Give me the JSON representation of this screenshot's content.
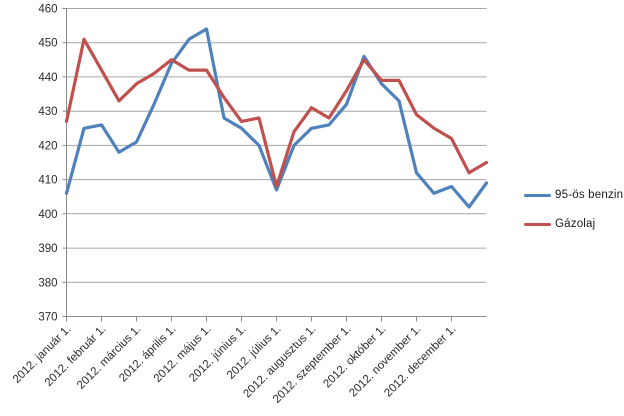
{
  "chart_data": {
    "type": "line",
    "title": "",
    "xlabel": "",
    "ylabel": "",
    "ylim": [
      370,
      460
    ],
    "y_ticks": [
      370,
      380,
      390,
      400,
      410,
      420,
      430,
      440,
      450,
      460
    ],
    "grid": true,
    "legend_position": "right",
    "x_tick_labels": [
      "2012. január 1.",
      "2012. február 1.",
      "2012. március 1.",
      "2012. április 1.",
      "2012. május 1.",
      "2012. június 1.",
      "2012. július 1.",
      "2012. augusztus 1.",
      "2012. szeptember 1.",
      "2012. október 1.",
      "2012. november 1.",
      "2012. december 1."
    ],
    "x": [
      "2012. január 1.",
      "2012. január 15.",
      "2012. február 1.",
      "2012. február 15.",
      "2012. március 1.",
      "2012. március 15.",
      "2012. április 1.",
      "2012. április 15.",
      "2012. május 1.",
      "2012. május 15.",
      "2012. június 1.",
      "2012. június 15.",
      "2012. július 1.",
      "2012. július 15.",
      "2012. augusztus 1.",
      "2012. augusztus 15.",
      "2012. szeptember 1.",
      "2012. szeptember 15.",
      "2012. október 1.",
      "2012. október 15.",
      "2012. november 1.",
      "2012. november 15.",
      "2012. december 1.",
      "2012. december 15.",
      "2012. december 31."
    ],
    "series": [
      {
        "name": "95-ös benzin",
        "color": "#4F81BD",
        "values": [
          406,
          425,
          426,
          418,
          421,
          432,
          444,
          451,
          454,
          428,
          425,
          420,
          407,
          420,
          425,
          426,
          432,
          446,
          438,
          433,
          412,
          406,
          408,
          402,
          409
        ]
      },
      {
        "name": "Gázolaj",
        "color": "#C0504D",
        "values": [
          427,
          451,
          442,
          433,
          438,
          441,
          445,
          442,
          442,
          434,
          427,
          428,
          408,
          424,
          431,
          428,
          436,
          445,
          439,
          439,
          429,
          425,
          422,
          412,
          415
        ]
      }
    ]
  }
}
